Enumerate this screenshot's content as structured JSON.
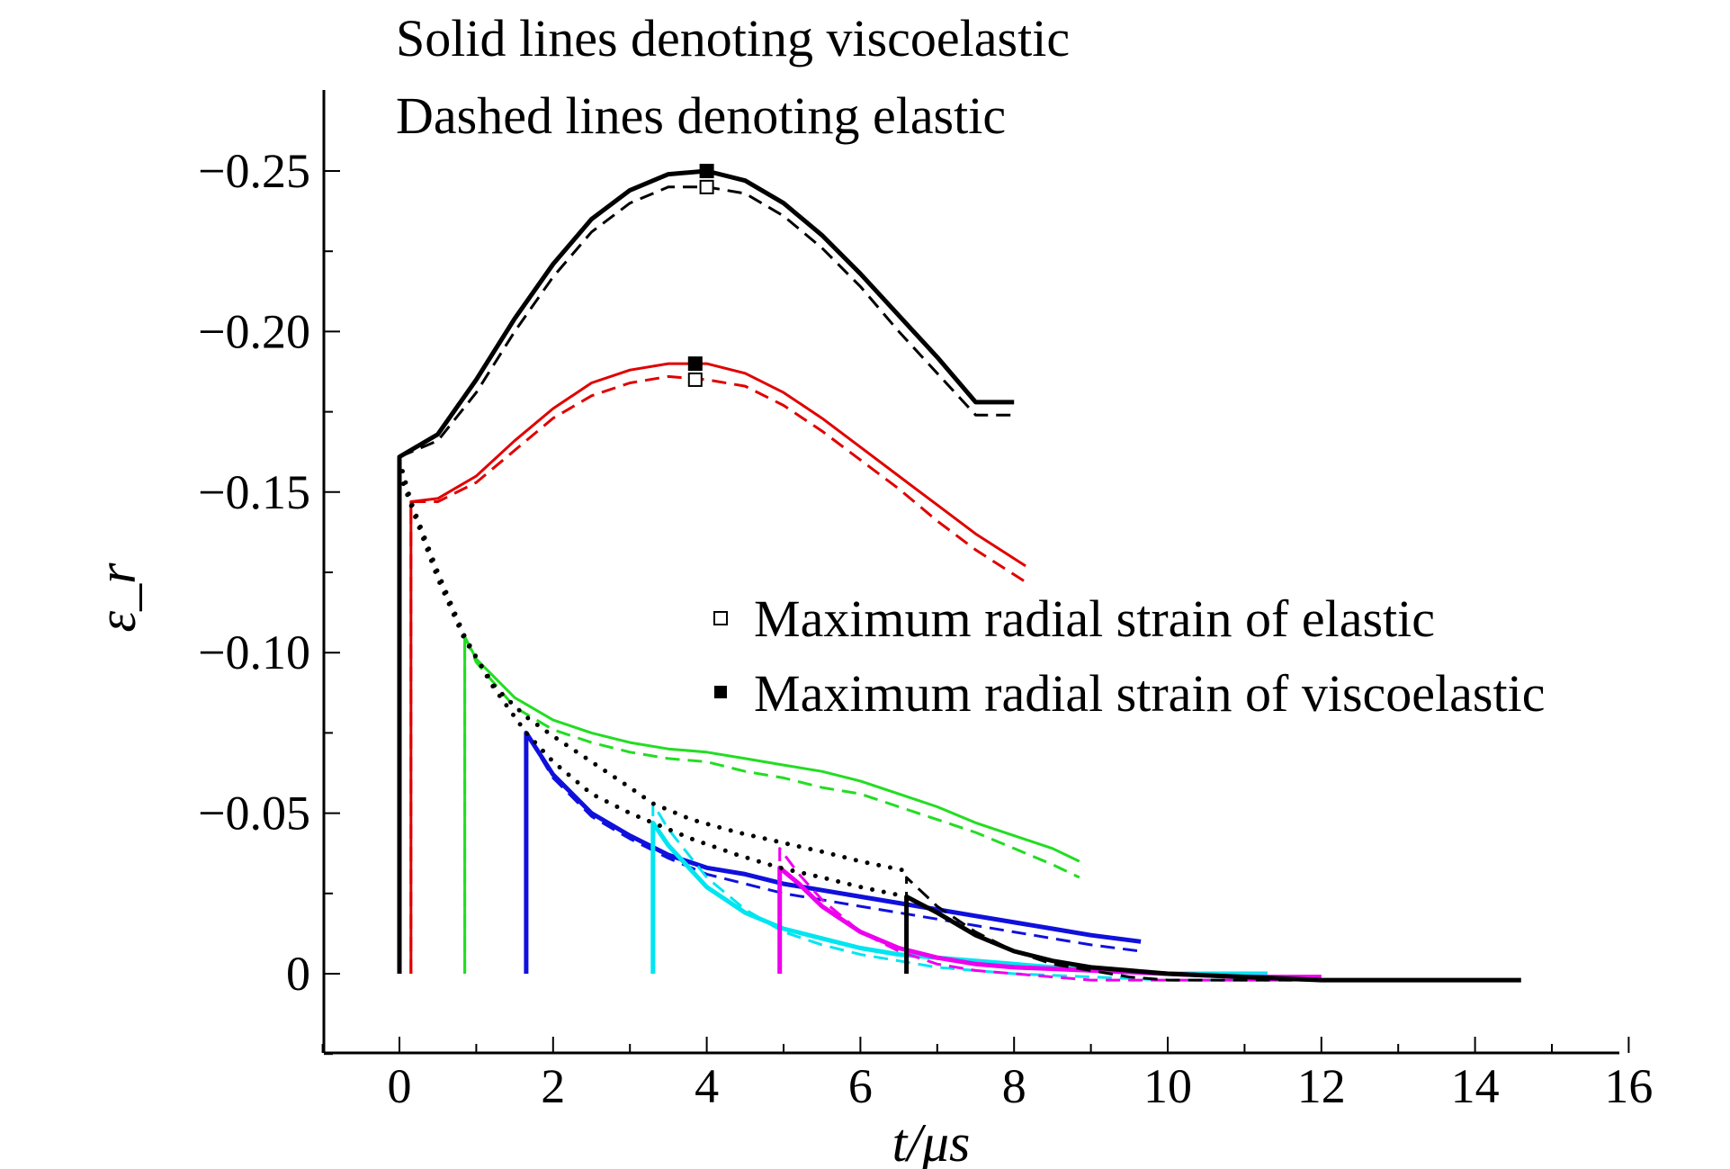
{
  "chart_data": {
    "type": "line",
    "annotations": [
      "Solid lines denoting viscoelastic",
      "Dashed lines denoting elastic"
    ],
    "xlabel": "t/μs",
    "ylabel": "ε_r",
    "xlim": [
      -1,
      16
    ],
    "ylim": [
      0.025,
      -0.275
    ],
    "y_reversed": true,
    "xticks": [
      0,
      2,
      4,
      6,
      8,
      10,
      12,
      14,
      16
    ],
    "xtick_labels": [
      "0",
      "2",
      "4",
      "6",
      "8",
      "10",
      "12",
      "14",
      "16"
    ],
    "yticks": [
      0,
      -0.05,
      -0.1,
      -0.15,
      -0.2,
      -0.25
    ],
    "ytick_labels": [
      "0",
      "−0.05",
      "−0.10",
      "−0.15",
      "−0.20",
      "−0.25"
    ],
    "grid": false,
    "legend": {
      "placement": "center-right",
      "entries": [
        {
          "marker": "open-square",
          "label": "Maximum radial strain of elastic"
        },
        {
          "marker": "filled-square",
          "label": "Maximum radial strain of viscoelastic"
        }
      ]
    },
    "series": [
      {
        "color": "#000000",
        "style": "solid",
        "width": 5,
        "x": [
          0,
          0,
          0.5,
          1.0,
          1.5,
          2.0,
          2.5,
          3.0,
          3.5,
          4.0,
          4.5,
          5.0,
          5.5,
          6.0,
          6.5,
          7.0,
          7.5,
          8.0
        ],
        "y": [
          0,
          -0.161,
          -0.168,
          -0.185,
          -0.204,
          -0.221,
          -0.235,
          -0.244,
          -0.249,
          -0.25,
          -0.247,
          -0.24,
          -0.23,
          -0.218,
          -0.205,
          -0.192,
          -0.178,
          -0.178
        ]
      },
      {
        "color": "#000000",
        "style": "dashed",
        "width": 3,
        "x": [
          0,
          0,
          0.5,
          1.0,
          1.5,
          2.0,
          2.5,
          3.0,
          3.5,
          4.0,
          4.5,
          5.0,
          5.5,
          6.0,
          6.5,
          7.0,
          7.5,
          8.0
        ],
        "y": [
          0,
          -0.161,
          -0.166,
          -0.181,
          -0.2,
          -0.217,
          -0.231,
          -0.24,
          -0.245,
          -0.245,
          -0.243,
          -0.236,
          -0.226,
          -0.214,
          -0.2,
          -0.187,
          -0.174,
          -0.174
        ]
      },
      {
        "color": "#e00000",
        "style": "solid",
        "width": 3,
        "x": [
          0.15,
          0.15,
          0.5,
          1.0,
          1.5,
          2.0,
          2.5,
          3.0,
          3.5,
          4.0,
          4.5,
          5.0,
          5.5,
          6.0,
          6.5,
          7.0,
          7.5,
          8.15
        ],
        "y": [
          0,
          -0.147,
          -0.148,
          -0.155,
          -0.166,
          -0.176,
          -0.184,
          -0.188,
          -0.19,
          -0.19,
          -0.187,
          -0.181,
          -0.173,
          -0.164,
          -0.155,
          -0.146,
          -0.137,
          -0.127
        ]
      },
      {
        "color": "#e00000",
        "style": "dashed",
        "width": 3,
        "x": [
          0.15,
          0.15,
          0.5,
          1.0,
          1.5,
          2.0,
          2.5,
          3.0,
          3.5,
          4.0,
          4.5,
          5.0,
          5.5,
          6.0,
          6.5,
          7.0,
          7.5,
          8.15
        ],
        "y": [
          0,
          -0.147,
          -0.147,
          -0.153,
          -0.163,
          -0.173,
          -0.18,
          -0.184,
          -0.186,
          -0.185,
          -0.183,
          -0.177,
          -0.169,
          -0.16,
          -0.151,
          -0.141,
          -0.132,
          -0.122
        ]
      },
      {
        "color": "#22dd22",
        "style": "solid",
        "width": 3,
        "x": [
          0.85,
          0.85,
          1.0,
          1.5,
          2.0,
          2.5,
          3.0,
          3.5,
          4.0,
          4.5,
          5.0,
          5.5,
          6.0,
          6.5,
          7.0,
          7.5,
          8.0,
          8.5,
          8.85
        ],
        "y": [
          0,
          -0.105,
          -0.098,
          -0.086,
          -0.079,
          -0.075,
          -0.072,
          -0.07,
          -0.069,
          -0.067,
          -0.065,
          -0.063,
          -0.06,
          -0.056,
          -0.052,
          -0.047,
          -0.043,
          -0.039,
          -0.035
        ]
      },
      {
        "color": "#22dd22",
        "style": "dashed",
        "width": 3,
        "x": [
          0.85,
          0.85,
          1.0,
          1.5,
          2.0,
          2.5,
          3.0,
          3.5,
          4.0,
          4.5,
          5.0,
          5.5,
          6.0,
          6.5,
          7.0,
          7.5,
          8.0,
          8.5,
          8.85
        ],
        "y": [
          0,
          -0.105,
          -0.097,
          -0.083,
          -0.076,
          -0.072,
          -0.069,
          -0.067,
          -0.066,
          -0.063,
          -0.061,
          -0.058,
          -0.056,
          -0.052,
          -0.048,
          -0.044,
          -0.039,
          -0.034,
          -0.03
        ]
      },
      {
        "color": "#1010dd",
        "style": "solid",
        "width": 5,
        "x": [
          1.65,
          1.65,
          2.0,
          2.5,
          3.0,
          3.5,
          4.0,
          4.5,
          5.0,
          5.5,
          6.0,
          6.5,
          7.0,
          7.5,
          8.0,
          8.5,
          9.0,
          9.65
        ],
        "y": [
          0,
          -0.075,
          -0.062,
          -0.05,
          -0.043,
          -0.037,
          -0.033,
          -0.031,
          -0.028,
          -0.026,
          -0.024,
          -0.022,
          -0.02,
          -0.018,
          -0.016,
          -0.014,
          -0.012,
          -0.01
        ]
      },
      {
        "color": "#1010dd",
        "style": "dashed",
        "width": 3,
        "x": [
          1.65,
          1.65,
          2.0,
          2.5,
          3.0,
          3.5,
          4.0,
          4.5,
          5.0,
          5.5,
          6.0,
          6.5,
          7.0,
          7.5,
          8.0,
          8.5,
          9.0,
          9.65
        ],
        "y": [
          0,
          -0.075,
          -0.061,
          -0.049,
          -0.042,
          -0.036,
          -0.031,
          -0.028,
          -0.025,
          -0.023,
          -0.021,
          -0.019,
          -0.017,
          -0.015,
          -0.013,
          -0.011,
          -0.009,
          -0.007
        ]
      },
      {
        "color": "#00e5f0",
        "style": "solid",
        "width": 5,
        "x": [
          3.3,
          3.3,
          3.5,
          4.0,
          4.5,
          5.0,
          5.5,
          6.0,
          6.5,
          7.0,
          8.0,
          9.0,
          10.0,
          11.3
        ],
        "y": [
          0,
          -0.047,
          -0.04,
          -0.027,
          -0.019,
          -0.014,
          -0.011,
          -0.008,
          -0.006,
          -0.005,
          -0.003,
          -0.001,
          0.0,
          0.0
        ]
      },
      {
        "color": "#00e5f0",
        "style": "dashed",
        "width": 3,
        "x": [
          3.3,
          3.3,
          3.5,
          4.0,
          4.5,
          5.0,
          5.5,
          6.0,
          6.5,
          7.0,
          8.0,
          9.0,
          10.0,
          11.3
        ],
        "y": [
          0,
          -0.053,
          -0.045,
          -0.03,
          -0.02,
          -0.013,
          -0.009,
          -0.006,
          -0.004,
          -0.002,
          0.0,
          0.001,
          0.002,
          0.002
        ]
      },
      {
        "color": "#ee00ee",
        "style": "solid",
        "width": 5,
        "x": [
          4.95,
          4.95,
          5.2,
          5.5,
          6.0,
          6.5,
          7.0,
          7.5,
          8.0,
          9.0,
          10.0,
          11.0,
          12.0
        ],
        "y": [
          0,
          -0.033,
          -0.028,
          -0.021,
          -0.013,
          -0.008,
          -0.005,
          -0.003,
          -0.002,
          -0.001,
          0.0,
          0.001,
          0.001
        ]
      },
      {
        "color": "#ee00ee",
        "style": "dashed",
        "width": 3,
        "x": [
          4.95,
          4.95,
          5.2,
          5.5,
          6.0,
          6.5,
          7.0,
          7.5,
          8.0,
          9.0,
          10.0,
          11.0,
          12.0
        ],
        "y": [
          0,
          -0.039,
          -0.031,
          -0.023,
          -0.013,
          -0.007,
          -0.003,
          -0.001,
          0.0,
          0.002,
          0.002,
          0.002,
          0.002
        ]
      },
      {
        "color": "#000000",
        "style": "solid",
        "width": 5,
        "x": [
          6.6,
          6.6,
          7.0,
          7.5,
          8.0,
          8.5,
          9.0,
          9.5,
          10.0,
          11.0,
          12.0,
          13.0,
          14.6
        ],
        "y": [
          0,
          -0.024,
          -0.019,
          -0.012,
          -0.007,
          -0.004,
          -0.002,
          -0.001,
          0.0,
          0.001,
          0.002,
          0.002,
          0.002
        ]
      },
      {
        "color": "#000000",
        "style": "dashed",
        "width": 3,
        "x": [
          6.6,
          6.6,
          7.0,
          7.5,
          8.0,
          8.5,
          9.0,
          9.5,
          10.0,
          11.0,
          12.0,
          13.0,
          14.6
        ],
        "y": [
          0,
          -0.03,
          -0.021,
          -0.013,
          -0.007,
          -0.003,
          -0.001,
          0.001,
          0.002,
          0.002,
          0.002,
          0.002,
          0.002
        ]
      },
      {
        "color": "#000000",
        "style": "dotted",
        "width": 4,
        "x": [
          0.0,
          0.15,
          0.5,
          0.85,
          1.2,
          1.65,
          2.0,
          2.5,
          3.0,
          3.3,
          3.8,
          4.4,
          4.95,
          5.5,
          6.0,
          6.6
        ],
        "y": [
          -0.16,
          -0.147,
          -0.125,
          -0.105,
          -0.09,
          -0.075,
          -0.066,
          -0.056,
          -0.05,
          -0.047,
          -0.042,
          -0.037,
          -0.033,
          -0.03,
          -0.027,
          -0.024
        ]
      },
      {
        "color": "#000000",
        "style": "dotted",
        "width": 4,
        "x": [
          0.0,
          0.15,
          0.5,
          0.85,
          1.25,
          1.65,
          2.0,
          2.5,
          3.0,
          3.3,
          3.8,
          4.4,
          4.95,
          5.5,
          6.0,
          6.6
        ],
        "y": [
          -0.156,
          -0.146,
          -0.123,
          -0.104,
          -0.089,
          -0.08,
          -0.074,
          -0.066,
          -0.058,
          -0.053,
          -0.048,
          -0.044,
          -0.041,
          -0.038,
          -0.035,
          -0.032
        ]
      }
    ],
    "markers": [
      {
        "type": "filled-square",
        "x": 4.0,
        "y": -0.25
      },
      {
        "type": "open-square",
        "x": 4.0,
        "y": -0.245
      },
      {
        "type": "filled-square",
        "x": 3.85,
        "y": -0.19
      },
      {
        "type": "open-square",
        "x": 3.85,
        "y": -0.185
      }
    ]
  }
}
